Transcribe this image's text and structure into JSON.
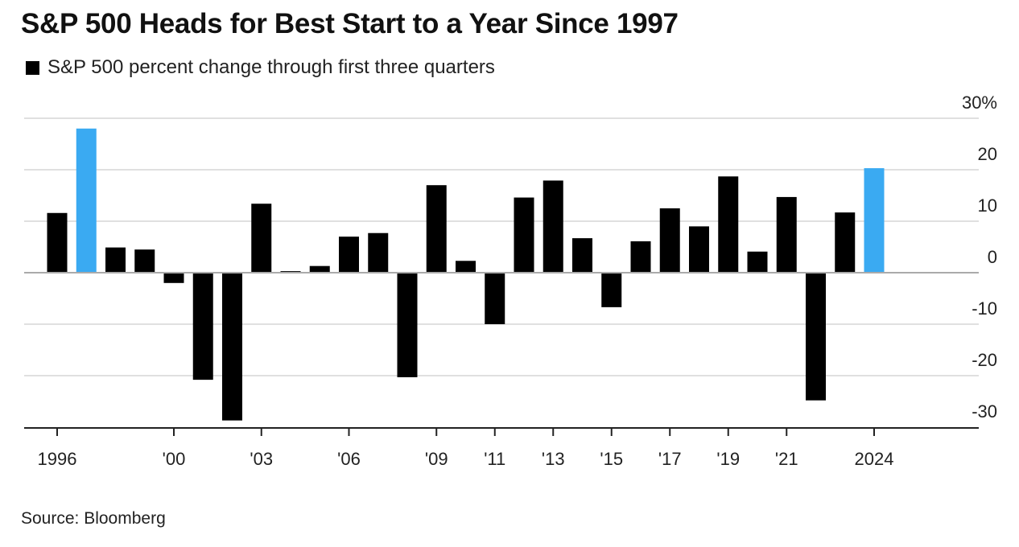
{
  "header": {
    "title": "S&P 500 Heads for Best Start to a Year Since 1997",
    "legend_label": "S&P 500 percent change through first three quarters"
  },
  "footer": {
    "source": "Source: Bloomberg"
  },
  "chart_data": {
    "type": "bar",
    "title": "S&P 500 Heads for Best Start to a Year Since 1997",
    "subtitle": "S&P 500 percent change through first three quarters",
    "categories": [
      "1996",
      "1997",
      "1998",
      "1999",
      "2000",
      "2001",
      "2002",
      "2003",
      "2004",
      "2005",
      "2006",
      "2007",
      "2008",
      "2009",
      "2010",
      "2011",
      "2012",
      "2013",
      "2014",
      "2015",
      "2016",
      "2017",
      "2018",
      "2019",
      "2020",
      "2021",
      "2022",
      "2023",
      "2024"
    ],
    "series": [
      {
        "name": "S&P 500 percent change through first three quarters",
        "values": [
          11.6,
          28.0,
          4.9,
          4.5,
          -2.0,
          -20.8,
          -28.7,
          13.4,
          0.3,
          1.3,
          7.0,
          7.7,
          -20.3,
          17.0,
          2.3,
          -10.0,
          14.6,
          17.9,
          6.7,
          -6.7,
          6.1,
          12.5,
          9.0,
          18.7,
          4.1,
          14.7,
          -24.8,
          11.7,
          20.3
        ]
      }
    ],
    "highlight_categories": [
      "1997",
      "2024"
    ],
    "colors": {
      "default": "#000000",
      "highlight": "#3aaaf2",
      "grid": "#e0e0e0",
      "zero_line": "#aaaaaa",
      "axis": "#222222"
    },
    "ylim": [
      -30,
      30
    ],
    "yticks": [
      30,
      20,
      10,
      0,
      -10,
      -20,
      -30
    ],
    "ytick_labels": [
      "30%",
      "20",
      "10",
      "0",
      "-10",
      "-20",
      "-30"
    ],
    "xtick_positions": [
      "1996",
      "2000",
      "2003",
      "2006",
      "2009",
      "2011",
      "2013",
      "2015",
      "2017",
      "2019",
      "2021",
      "2024"
    ],
    "xtick_labels": [
      "1996",
      "'00",
      "'03",
      "'06",
      "'09",
      "'11",
      "'13",
      "'15",
      "'17",
      "'19",
      "'21",
      "2024"
    ],
    "xlabel": "",
    "ylabel": "",
    "grid": true,
    "y_axis_position": "right"
  }
}
